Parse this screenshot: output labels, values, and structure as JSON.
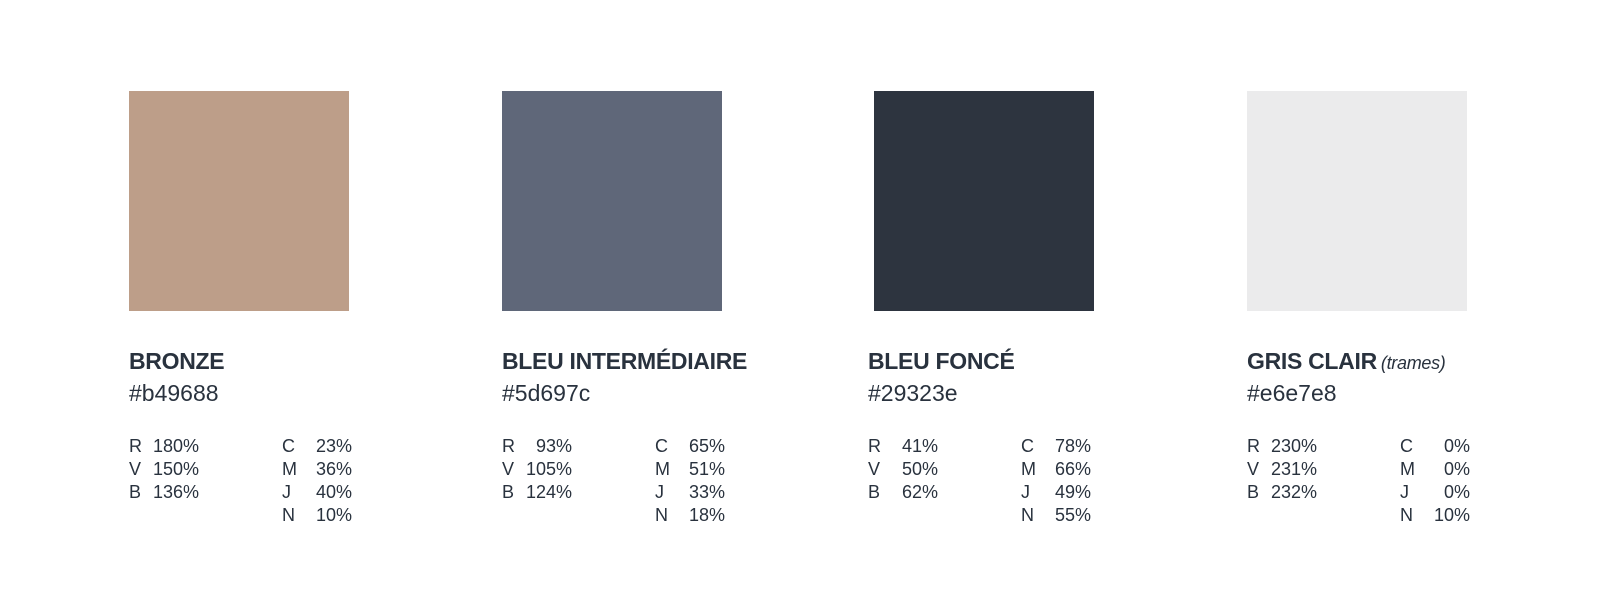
{
  "colors": [
    {
      "name": "BRONZE",
      "note": "",
      "hex": "#b49688",
      "swatch": "#bd9e89",
      "rgb": [
        {
          "l": "R",
          "v": "180%"
        },
        {
          "l": "V",
          "v": "150%"
        },
        {
          "l": "B",
          "v": "136%"
        }
      ],
      "cmyk": [
        {
          "l": "C",
          "v": "23%"
        },
        {
          "l": "M",
          "v": "36%"
        },
        {
          "l": "J",
          "v": "40%"
        },
        {
          "l": "N",
          "v": "10%"
        }
      ]
    },
    {
      "name": "BLEU INTERMÉDIAIRE",
      "note": "",
      "hex": "#5d697c",
      "swatch": "#5f6779",
      "rgb": [
        {
          "l": "R",
          "v": "93%"
        },
        {
          "l": "V",
          "v": "105%"
        },
        {
          "l": "B",
          "v": "124%"
        }
      ],
      "cmyk": [
        {
          "l": "C",
          "v": "65%"
        },
        {
          "l": "M",
          "v": "51%"
        },
        {
          "l": "J",
          "v": "33%"
        },
        {
          "l": "N",
          "v": "18%"
        }
      ]
    },
    {
      "name": "BLEU FONCÉ",
      "note": "",
      "hex": "#29323e",
      "swatch": "#2d343f",
      "rgb": [
        {
          "l": "R",
          "v": "41%"
        },
        {
          "l": "V",
          "v": "50%"
        },
        {
          "l": "B",
          "v": "62%"
        }
      ],
      "cmyk": [
        {
          "l": "C",
          "v": "78%"
        },
        {
          "l": "M",
          "v": "66%"
        },
        {
          "l": "J",
          "v": "49%"
        },
        {
          "l": "N",
          "v": "55%"
        }
      ]
    },
    {
      "name": "GRIS CLAIR",
      "note": "(trames)",
      "hex": "#e6e7e8",
      "swatch": "#ebebec",
      "rgb": [
        {
          "l": "R",
          "v": "230%"
        },
        {
          "l": "V",
          "v": "231%"
        },
        {
          "l": "B",
          "v": "232%"
        }
      ],
      "cmyk": [
        {
          "l": "C",
          "v": "0%"
        },
        {
          "l": "M",
          "v": "0%"
        },
        {
          "l": "J",
          "v": "0%"
        },
        {
          "l": "N",
          "v": "10%"
        }
      ]
    }
  ]
}
